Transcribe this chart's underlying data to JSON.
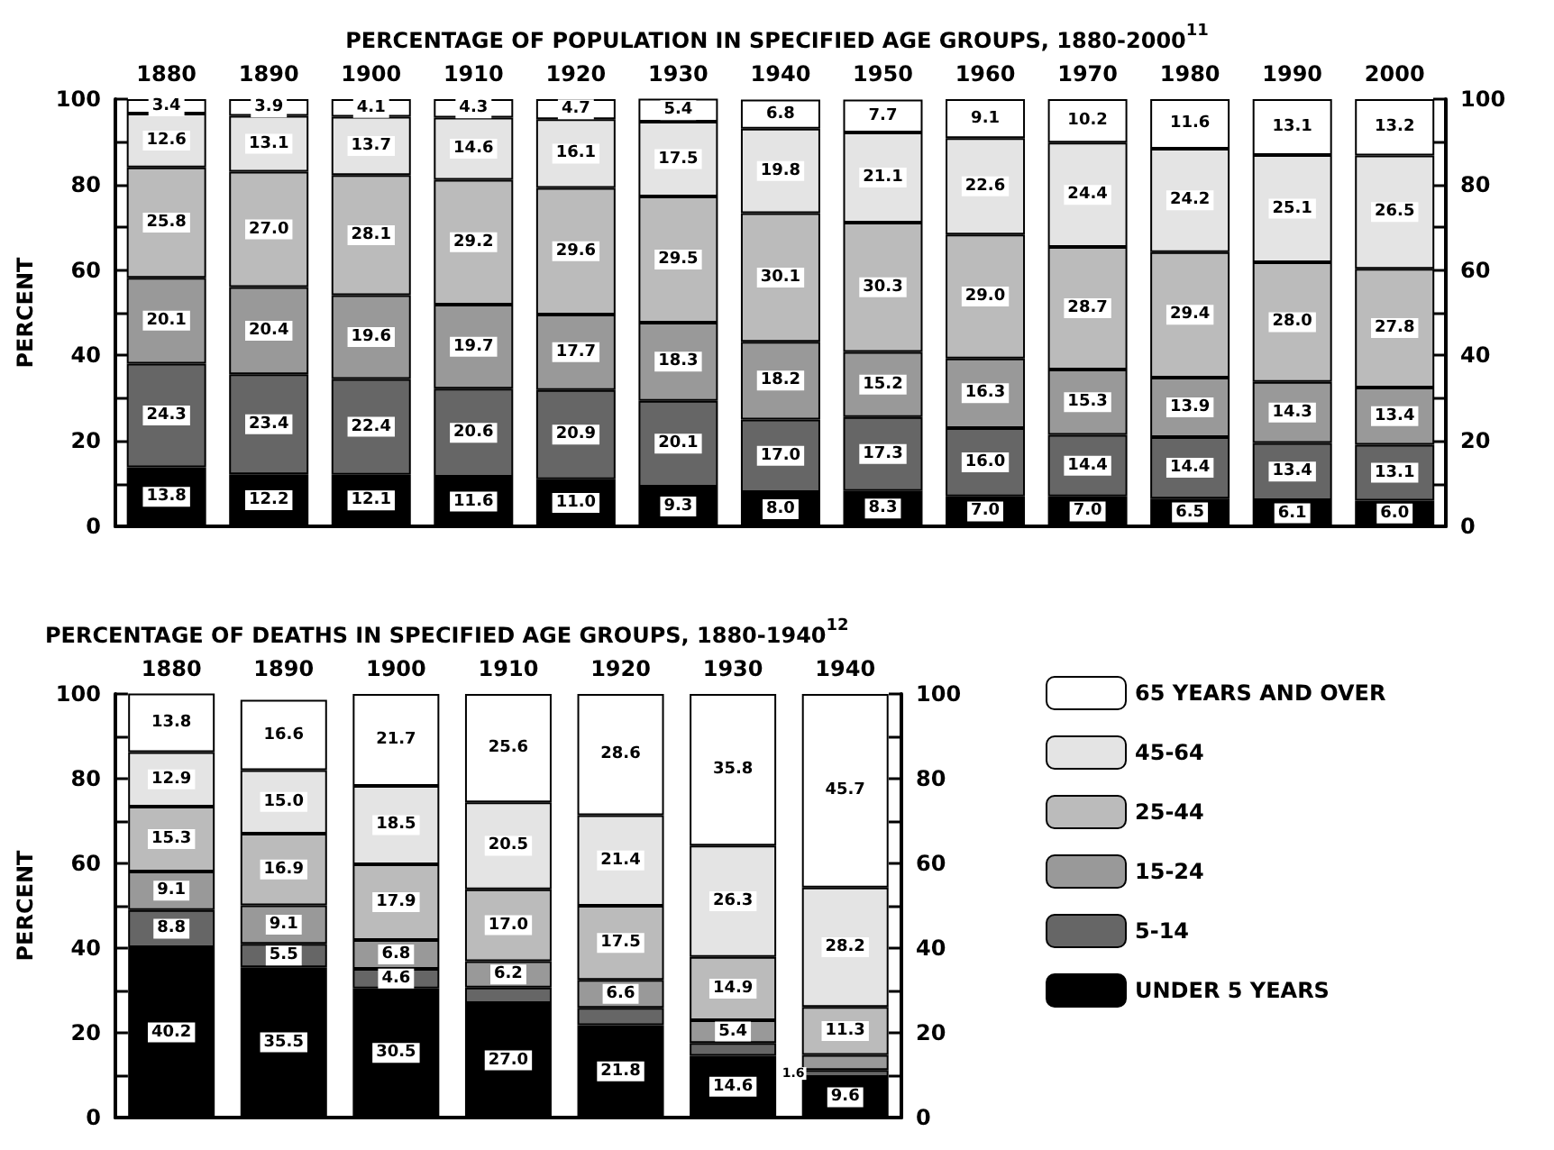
{
  "chart_data": [
    {
      "type": "bar",
      "stacked": true,
      "title": "PERCENTAGE OF POPULATION IN SPECIFIED AGE GROUPS, 1880-2000$^{11}$",
      "ylabel": "PERCENT",
      "categories": [
        "1880",
        "1890",
        "1900",
        "1910",
        "1920",
        "1930",
        "1940",
        "1950",
        "1960",
        "1970",
        "1980",
        "1990",
        "2000"
      ],
      "series": [
        {
          "color": "#000000",
          "values": [
            13.8,
            12.2,
            12.1,
            11.6,
            11.0,
            9.3,
            8.0,
            8.3,
            7.0,
            7.0,
            6.5,
            6.1,
            6.0
          ],
          "value_labels": [
            "13.8",
            "12.2",
            "12.1",
            "11.6",
            "11.0",
            "9.3",
            "8.0",
            "8.3",
            "7.0",
            "7.0",
            "6.5",
            "6.1",
            "6.0"
          ]
        },
        {
          "color": "#666666",
          "values": [
            24.3,
            23.4,
            22.4,
            20.6,
            20.9,
            20.1,
            17.0,
            17.3,
            16.0,
            14.4,
            14.4,
            13.4,
            13.1
          ],
          "value_labels": [
            "24.3",
            "23.4",
            "22.4",
            "20.6",
            "20.9",
            "20.1",
            "17.0",
            "17.3",
            "16.0",
            "14.4",
            "14.4",
            "13.4",
            "13.1"
          ]
        },
        {
          "color": "#999999",
          "values": [
            20.1,
            20.4,
            19.6,
            19.7,
            17.7,
            18.3,
            18.2,
            15.2,
            16.3,
            15.3,
            13.9,
            14.3,
            13.4
          ],
          "value_labels": [
            "20.1",
            "20.4",
            "19.6",
            "19.7",
            "17.7",
            "18.3",
            "18.2",
            "15.2",
            "16.3",
            "15.3",
            "13.9",
            "14.3",
            "13.4"
          ]
        },
        {
          "color": "#bbbbbb",
          "values": [
            25.8,
            27.0,
            28.1,
            29.2,
            29.6,
            29.5,
            30.1,
            30.3,
            29.0,
            28.7,
            29.4,
            28.0,
            27.8
          ],
          "value_labels": [
            "25.8",
            "27.0",
            "28.1",
            "29.2",
            "29.6",
            "29.5",
            "30.1",
            "30.3",
            "29.0",
            "28.7",
            "29.4",
            "28.0",
            "27.8"
          ]
        },
        {
          "color": "#e4e4e4",
          "values": [
            12.6,
            13.1,
            13.7,
            14.6,
            16.1,
            17.5,
            19.8,
            21.1,
            22.6,
            24.4,
            24.2,
            25.1,
            26.5
          ],
          "value_labels": [
            "12.6",
            "13.1",
            "13.7",
            "14.6",
            "16.1",
            "17.5",
            "19.8",
            "21.1",
            "22.6",
            "24.4",
            "24.2",
            "25.1",
            "26.5"
          ]
        },
        {
          "color": "#ffffff",
          "values": [
            3.4,
            3.9,
            4.1,
            4.3,
            4.7,
            5.4,
            6.8,
            7.7,
            9.1,
            10.2,
            11.6,
            13.1,
            13.2
          ],
          "value_labels": [
            "3.4",
            "3.9",
            "4.1",
            "4.3",
            "4.7",
            "5.4",
            "6.8",
            "7.7",
            "9.1",
            "10.2",
            "11.6",
            "13.1",
            "13.2"
          ]
        }
      ],
      "legend": false,
      "grid": false,
      "ylim": [
        0,
        100
      ],
      "yticks": [
        0,
        {
          "value": 10,
          "label": null
        },
        20,
        {
          "value": 30,
          "label": null
        },
        40,
        {
          "value": 50,
          "label": null
        },
        60,
        {
          "value": 70,
          "label": null
        },
        80,
        {
          "value": 90,
          "label": null
        },
        100
      ],
      "y2lim": [
        0,
        100
      ],
      "y2ticks": [
        0,
        {
          "value": 10,
          "label": null
        },
        20,
        {
          "value": 30,
          "label": null
        },
        40,
        {
          "value": 50,
          "label": null
        },
        60,
        {
          "value": 70,
          "label": null
        },
        80,
        {
          "value": 90,
          "label": null
        },
        100
      ]
    },
    {
      "type": "bar",
      "stacked": true,
      "title": "PERCENTAGE OF DEATHS IN SPECIFIED AGE GROUPS, 1880-1940$^{12}$",
      "ylabel": "PERCENT",
      "categories": [
        "1880",
        "1890",
        "1900",
        "1910",
        "1920",
        "1930",
        "1940"
      ],
      "series": [
        {
          "name": "UNDER 5 YEARS",
          "color": "#000000",
          "values": [
            40.2,
            35.5,
            30.5,
            27.0,
            21.8,
            14.6,
            9.6
          ],
          "value_labels": [
            "40.2",
            "35.5",
            "30.5",
            "27.0",
            "21.8",
            "14.6",
            "9.6"
          ]
        },
        {
          "name": "5-14",
          "color": "#666666",
          "values": [
            8.8,
            5.5,
            4.6,
            3.7,
            4.1,
            3.0,
            1.6
          ],
          "value_labels": [
            "8.8",
            "5.5",
            "4.6",
            null,
            null,
            null,
            "1.6"
          ]
        },
        {
          "name": "15-24",
          "color": "#999999",
          "values": [
            9.1,
            9.1,
            6.8,
            6.2,
            6.6,
            5.4,
            3.6
          ],
          "value_labels": [
            "9.1",
            "9.1",
            "6.8",
            "6.2",
            "6.6",
            "5.4",
            null
          ]
        },
        {
          "name": "25-44",
          "color": "#bbbbbb",
          "values": [
            15.3,
            16.9,
            17.9,
            17.0,
            17.5,
            14.9,
            11.3
          ],
          "value_labels": [
            "15.3",
            "16.9",
            "17.9",
            "17.0",
            "17.5",
            "14.9",
            "11.3"
          ]
        },
        {
          "name": "45-64",
          "color": "#e4e4e4",
          "values": [
            12.9,
            15.0,
            18.5,
            20.5,
            21.4,
            26.3,
            28.2
          ],
          "value_labels": [
            "12.9",
            "15.0",
            "18.5",
            "20.5",
            "21.4",
            "26.3",
            "28.2"
          ]
        },
        {
          "name": "65 YEARS AND OVER",
          "color": "#ffffff",
          "values": [
            13.8,
            16.6,
            21.7,
            25.6,
            28.6,
            35.8,
            45.7
          ],
          "value_labels": [
            "13.8",
            "16.6",
            "21.7",
            "25.6",
            "28.6",
            "35.8",
            "45.7"
          ]
        }
      ],
      "legend": "right",
      "grid": false,
      "ylim": [
        0,
        100
      ],
      "yticks": [
        0,
        {
          "value": 10,
          "label": null
        },
        20,
        {
          "value": 30,
          "label": null
        },
        40,
        {
          "value": 50,
          "label": null
        },
        60,
        {
          "value": 70,
          "label": null
        },
        80,
        {
          "value": 90,
          "label": null
        },
        100
      ],
      "y2lim": [
        0,
        100
      ],
      "y2ticks": [
        0,
        {
          "value": 10,
          "label": null
        },
        20,
        {
          "value": 30,
          "label": null
        },
        40,
        {
          "value": 50,
          "label": null
        },
        60,
        {
          "value": 70,
          "label": null
        },
        80,
        {
          "value": 90,
          "label": null
        },
        100
      ]
    }
  ]
}
